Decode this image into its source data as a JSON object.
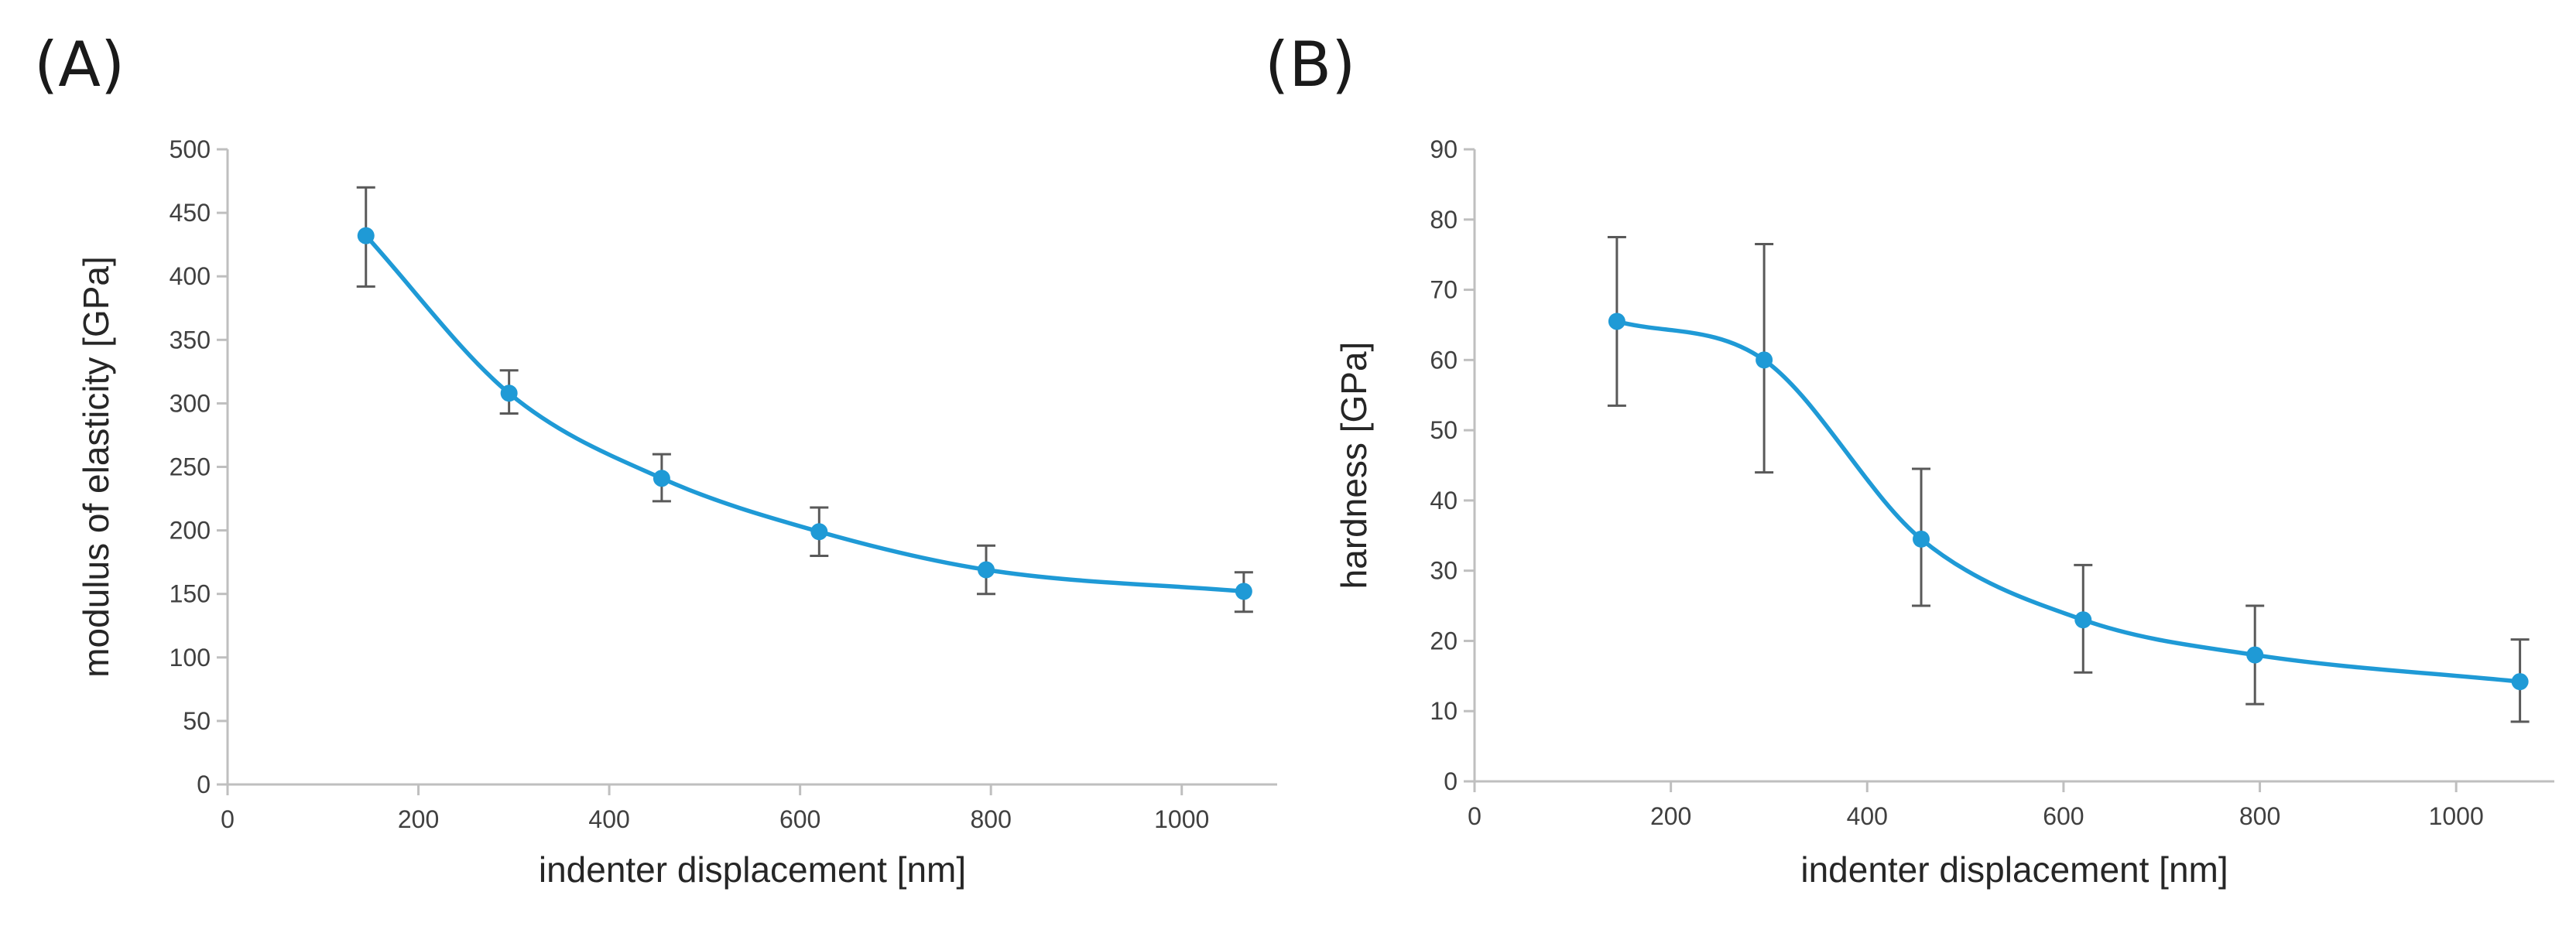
{
  "chart_data": [
    {
      "type": "line",
      "panel_label": "(A)",
      "xlabel": "indenter displacement   [nm]",
      "ylabel": "modulus of elasticity   [GPa]",
      "xlim": [
        0,
        1100
      ],
      "ylim": [
        0,
        500
      ],
      "xticks": [
        0,
        200,
        400,
        600,
        800,
        1000
      ],
      "yticks": [
        0,
        50,
        100,
        150,
        200,
        250,
        300,
        350,
        400,
        450,
        500
      ],
      "grid": false,
      "smooth": true,
      "color": "#1f9ad6",
      "series": [
        {
          "name": "modulus of elasticity",
          "x": [
            145,
            295,
            455,
            620,
            795,
            1065
          ],
          "y": [
            432,
            308,
            241,
            199,
            169,
            152
          ],
          "err_low": [
            392,
            292,
            223,
            180,
            150,
            136
          ],
          "err_high": [
            470,
            326,
            260,
            218,
            188,
            167
          ]
        }
      ]
    },
    {
      "type": "line",
      "panel_label": "(B)",
      "xlabel": "indenter displacement   [nm]",
      "ylabel": "hardness   [GPa]",
      "xlim": [
        0,
        1100
      ],
      "ylim": [
        0,
        90
      ],
      "xticks": [
        0,
        200,
        400,
        600,
        800,
        1000
      ],
      "yticks": [
        0,
        10,
        20,
        30,
        40,
        50,
        60,
        70,
        80,
        90
      ],
      "grid": false,
      "smooth": true,
      "color": "#1f9ad6",
      "series": [
        {
          "name": "hardness",
          "x": [
            145,
            295,
            455,
            620,
            795,
            1065
          ],
          "y": [
            65.5,
            60,
            34.5,
            23,
            18,
            14.2
          ],
          "err_low": [
            53.5,
            44,
            25,
            15.5,
            11,
            8.5
          ],
          "err_high": [
            77.5,
            76.5,
            44.5,
            30.8,
            25,
            20.2
          ]
        }
      ]
    }
  ]
}
